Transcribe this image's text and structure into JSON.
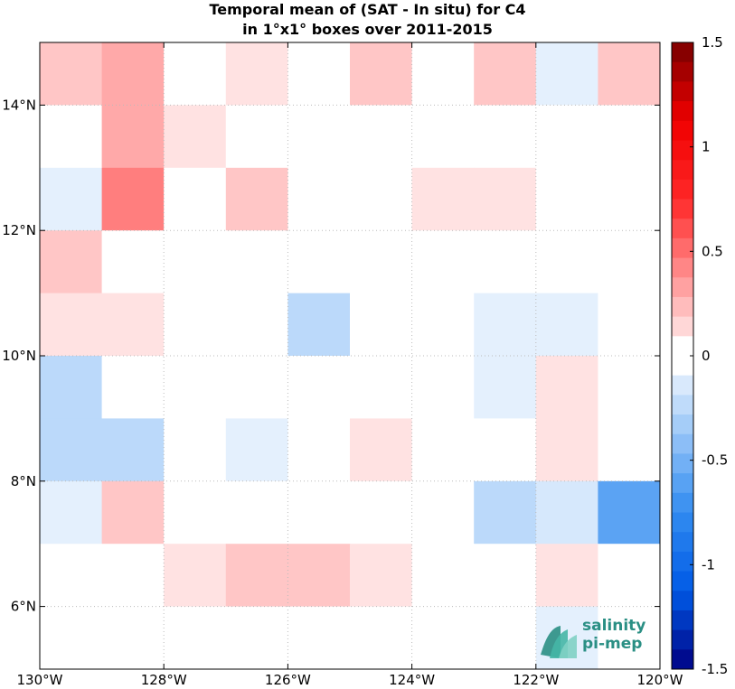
{
  "title": {
    "line1": "Temporal mean of (SAT - In situ) for C4",
    "line2": "in 1°x1° boxes over 2011-2015"
  },
  "logo": {
    "line1": "salinity",
    "line2": "pi-mep"
  },
  "chart_data": {
    "type": "heatmap",
    "x_ticks": [
      "130°W",
      "128°W",
      "126°W",
      "124°W",
      "122°W",
      "120°W"
    ],
    "y_ticks": [
      "6°N",
      "8°N",
      "10°N",
      "12°N",
      "14°N"
    ],
    "xlim": [
      -130,
      -120
    ],
    "ylim": [
      5,
      15
    ],
    "cell_size_deg": 1,
    "colorbar": {
      "min": -1.5,
      "max": 1.5,
      "ticks": [
        -1.5,
        -1,
        -0.5,
        0,
        0.5,
        1,
        1.5
      ],
      "tick_labels": [
        "-1.5",
        "-1",
        "-0.5",
        "0",
        "0.5",
        "1",
        "1.5"
      ],
      "colormap": "blue-white-red"
    },
    "row_order": "north-to-south",
    "rows_lat_centers": [
      14.5,
      13.5,
      12.5,
      11.5,
      10.5,
      9.5,
      8.5,
      7.5,
      6.5,
      5.5
    ],
    "cols_lon_centers": [
      -129.5,
      -128.5,
      -127.5,
      -126.5,
      -125.5,
      -124.5,
      -123.5,
      -122.5,
      -121.5,
      -120.5
    ],
    "values": [
      [
        0.2,
        0.3,
        0,
        0.1,
        0,
        0.2,
        0,
        0.2,
        -0.1,
        0.2
      ],
      [
        0,
        0.3,
        0.1,
        0,
        0,
        0,
        0,
        0,
        0,
        0
      ],
      [
        -0.1,
        0.45,
        0,
        0.2,
        0,
        0,
        0.1,
        0.1,
        0,
        0
      ],
      [
        0.2,
        0,
        0,
        0,
        0,
        0,
        0,
        0,
        0,
        0
      ],
      [
        0.1,
        0.1,
        0,
        0,
        -0.25,
        0,
        0,
        -0.1,
        -0.1,
        0
      ],
      [
        -0.25,
        0,
        0,
        0,
        0,
        0,
        0,
        -0.1,
        0.1,
        0
      ],
      [
        -0.25,
        -0.25,
        0,
        -0.1,
        0,
        0.1,
        0,
        0,
        0.1,
        0
      ],
      [
        -0.1,
        0.2,
        0,
        0,
        0,
        0,
        0,
        -0.25,
        -0.15,
        -0.6
      ],
      [
        0,
        0,
        0.1,
        0.2,
        0.2,
        0.1,
        0,
        0,
        0.1,
        0
      ],
      [
        0,
        0,
        0,
        0,
        0,
        0,
        0,
        0,
        -0.1,
        0
      ]
    ]
  }
}
